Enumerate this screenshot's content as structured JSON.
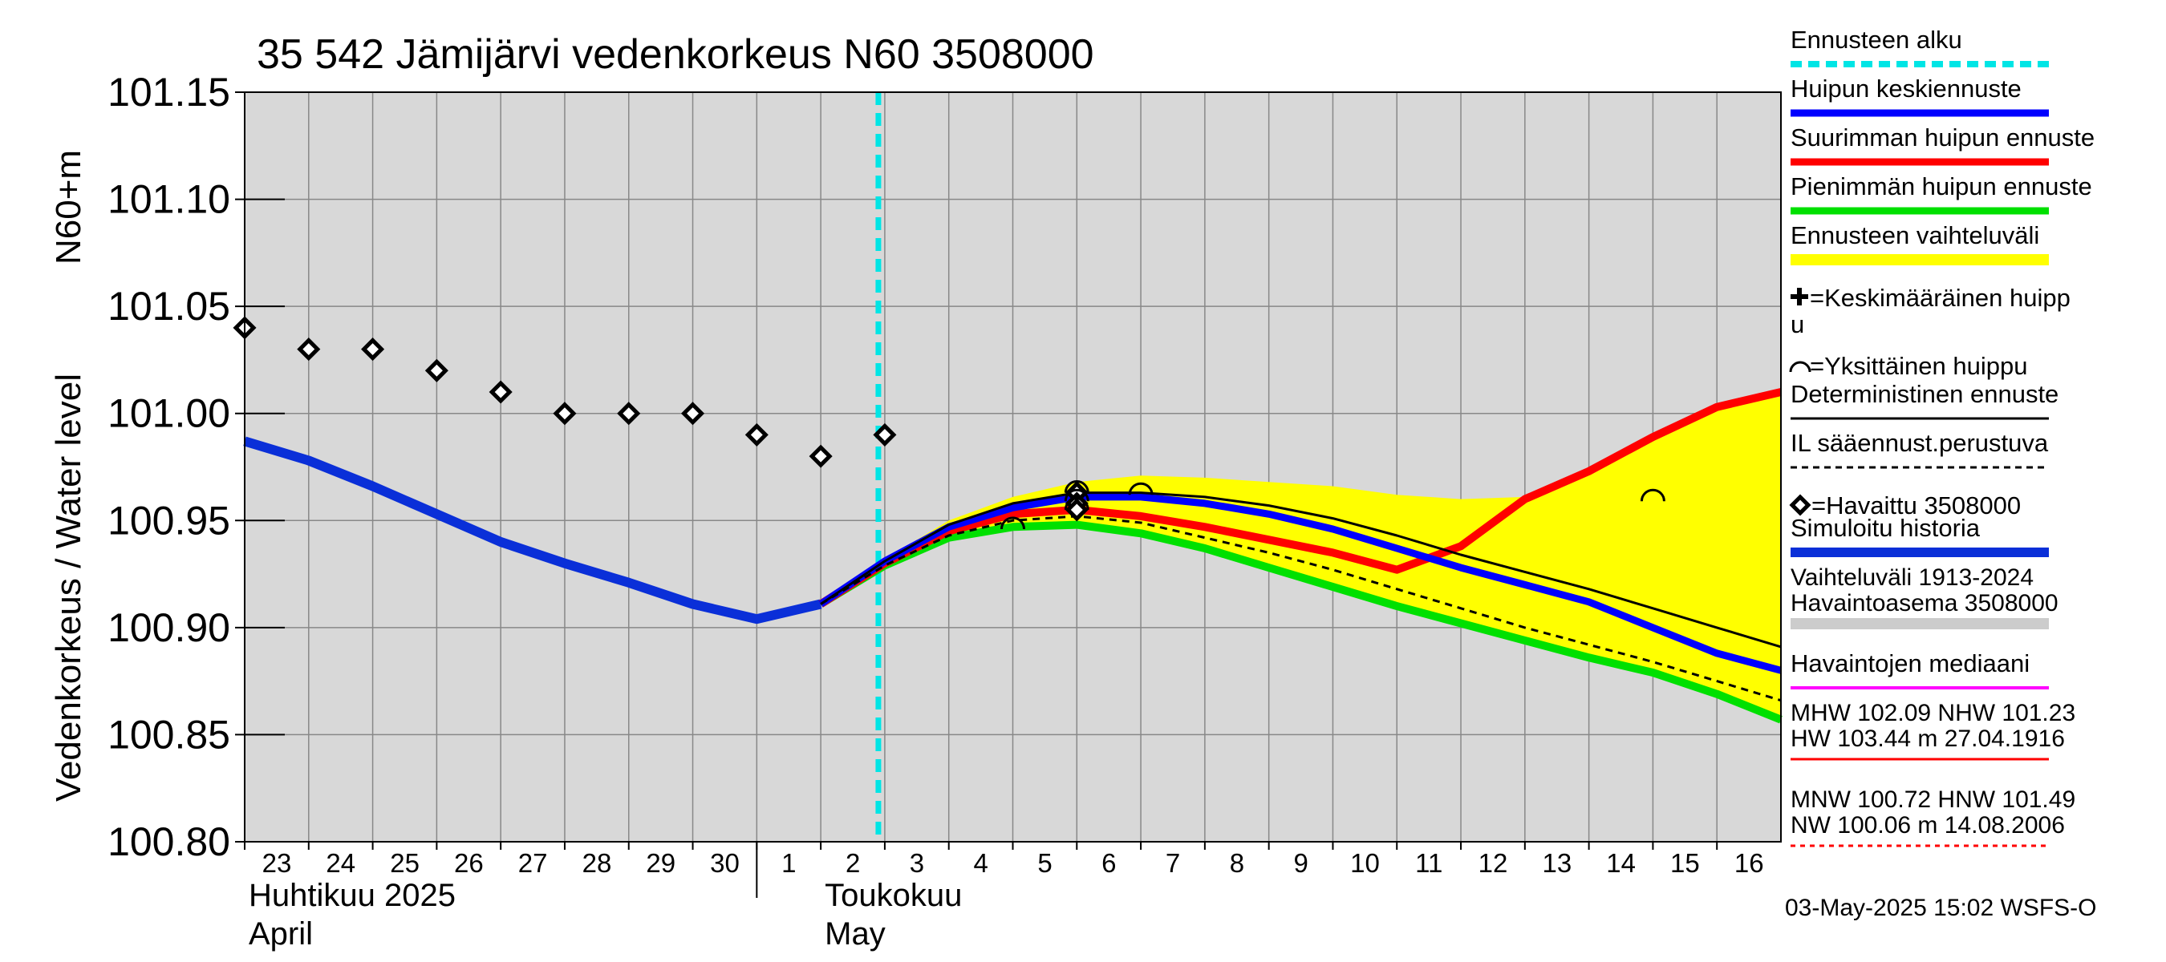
{
  "chart_data": {
    "type": "line",
    "title": "35 542 Jämijärvi vedenkorkeus N60 3508000",
    "ylabel": "Vedenkorkeus / Water level",
    "ylabel_unit": "N60+m",
    "ylim": [
      100.8,
      101.15
    ],
    "yticks": [
      "101.15",
      "101.10",
      "101.05",
      "101.00",
      "100.95",
      "100.90",
      "100.85",
      "100.80"
    ],
    "x_day_range": [
      0,
      24
    ],
    "x_tick_labels": [
      "23",
      "24",
      "25",
      "26",
      "27",
      "28",
      "29",
      "30",
      "1",
      "2",
      "3",
      "4",
      "5",
      "6",
      "7",
      "8",
      "9",
      "10",
      "11",
      "12",
      "13",
      "14",
      "15",
      "16"
    ],
    "month_labels": [
      {
        "fi": "Huhtikuu  2025",
        "en": "April"
      },
      {
        "fi": "Toukokuu",
        "en": "May"
      }
    ],
    "forecast_start_day": 10,
    "series": [
      {
        "name": "Havaittu 3508000",
        "kind": "observed",
        "x": [
          0,
          1,
          2,
          3,
          4,
          5,
          6,
          7,
          8,
          9,
          10
        ],
        "y": [
          101.04,
          101.03,
          101.03,
          101.02,
          101.01,
          101.0,
          101.0,
          101.0,
          100.99,
          100.98,
          100.99
        ]
      },
      {
        "name": "Simuloitu historia",
        "kind": "simulated",
        "x": [
          0,
          1,
          2,
          3,
          4,
          5,
          6,
          7,
          8,
          9
        ],
        "y": [
          100.987,
          100.978,
          100.966,
          100.953,
          100.94,
          100.93,
          100.921,
          100.911,
          100.904,
          100.911
        ]
      },
      {
        "name": "Ennusteen vaihteluväli",
        "kind": "band",
        "x": [
          9,
          10,
          11,
          12,
          13,
          14,
          15,
          16,
          17,
          18,
          19,
          20,
          21,
          22,
          23,
          24
        ],
        "upper": [
          100.911,
          100.932,
          100.95,
          100.961,
          100.968,
          100.971,
          100.97,
          100.968,
          100.966,
          100.962,
          100.96,
          100.961,
          100.972,
          100.99,
          101.003,
          101.01
        ],
        "lower": [
          100.911,
          100.93,
          100.943,
          100.947,
          100.948,
          100.944,
          100.937,
          100.928,
          100.919,
          100.91,
          100.902,
          100.893,
          100.885,
          100.878,
          100.869,
          100.857
        ]
      },
      {
        "name": "Suurimman huipun ennuste",
        "kind": "max",
        "x": [
          9,
          10,
          11,
          12,
          13,
          14,
          15,
          16,
          17,
          18,
          19,
          20,
          21,
          22,
          23,
          24
        ],
        "y": [
          100.911,
          100.93,
          100.945,
          100.953,
          100.955,
          100.952,
          100.947,
          100.941,
          100.935,
          100.927,
          100.938,
          100.96,
          100.973,
          100.989,
          101.003,
          101.01
        ]
      },
      {
        "name": "Pienimmän huipun ennuste",
        "kind": "min",
        "x": [
          9,
          10,
          11,
          12,
          13,
          14,
          15,
          16,
          17,
          18,
          19,
          20,
          21,
          22,
          23,
          24
        ],
        "y": [
          100.911,
          100.929,
          100.942,
          100.947,
          100.948,
          100.944,
          100.937,
          100.928,
          100.919,
          100.91,
          100.902,
          100.894,
          100.886,
          100.879,
          100.869,
          100.857
        ]
      },
      {
        "name": "Huipun keskiennuste",
        "kind": "mean",
        "x": [
          9,
          10,
          11,
          12,
          13,
          14,
          15,
          16,
          17,
          18,
          19,
          20,
          21,
          22,
          23,
          24
        ],
        "y": [
          100.911,
          100.931,
          100.947,
          100.956,
          100.961,
          100.961,
          100.958,
          100.953,
          100.946,
          100.937,
          100.928,
          100.92,
          100.912,
          100.9,
          100.888,
          100.88
        ]
      },
      {
        "name": "Deterministinen ennuste",
        "kind": "deterministic",
        "x": [
          9,
          10,
          11,
          12,
          13,
          14,
          15,
          16,
          17,
          18,
          19,
          20,
          21,
          22,
          23,
          24
        ],
        "y": [
          100.911,
          100.931,
          100.948,
          100.958,
          100.963,
          100.963,
          100.961,
          100.957,
          100.951,
          100.943,
          100.934,
          100.926,
          100.918,
          100.909,
          100.9,
          100.891
        ]
      },
      {
        "name": "IL sääennust.perustuva",
        "kind": "weather",
        "x": [
          9,
          10,
          11,
          12,
          13,
          14,
          15,
          16,
          17,
          18,
          19,
          20,
          21,
          22,
          23,
          24
        ],
        "y": [
          100.911,
          100.929,
          100.943,
          100.95,
          100.952,
          100.949,
          100.942,
          100.935,
          100.927,
          100.918,
          100.909,
          100.9,
          100.892,
          100.884,
          100.875,
          100.866
        ]
      }
    ],
    "individual_peaks": [
      {
        "x": 12.0,
        "y": 100.949
      },
      {
        "x": 13.0,
        "y": 100.966
      },
      {
        "x": 13.0,
        "y": 100.962
      },
      {
        "x": 13.0,
        "y": 100.958
      },
      {
        "x": 14.0,
        "y": 100.965
      },
      {
        "x": 22.0,
        "y": 100.962
      }
    ],
    "peak_markers_observed": [
      {
        "x": 13.0,
        "y": 100.963
      },
      {
        "x": 13.0,
        "y": 100.958
      },
      {
        "x": 13.0,
        "y": 100.955
      }
    ],
    "colors": {
      "forecast_start": "#00e5e5",
      "mean": "#0000ff",
      "max": "#ff0000",
      "min": "#00e000",
      "band": "#ffff00",
      "simulated": "#0a2fd8",
      "range_bar": "#cccccc",
      "median": "#ff00ff",
      "plot_bg": "#d8d8d8",
      "grid": "#888888"
    }
  },
  "legend": [
    {
      "label": "Ennusteen alku",
      "style": "cyan-dash"
    },
    {
      "label": "Huipun keskiennuste",
      "style": "blue"
    },
    {
      "label": "Suurimman huipun ennuste",
      "style": "red"
    },
    {
      "label": "Pienimmän huipun ennuste",
      "style": "green"
    },
    {
      "label": "Ennusteen vaihteluväli",
      "style": "yellow"
    },
    {
      "label": "=Keskimääräinen huipp",
      "label2": "u",
      "style": "plus"
    },
    {
      "label": "=Yksittäinen huippu",
      "style": "arc"
    },
    {
      "label": "Deterministinen ennuste",
      "style": "black"
    },
    {
      "label": "IL sääennust.perustuva",
      "style": "dash"
    },
    {
      "label": "=Havaittu 3508000",
      "style": "diamond"
    },
    {
      "label": "Simuloitu historia",
      "style": "simblue"
    },
    {
      "label": "Vaihteluväli 1913-2024",
      "label2": " Havaintoasema 3508000",
      "style": "gray"
    },
    {
      "label": "Havaintojen mediaani",
      "style": "magenta"
    },
    {
      "label": "MHW 102.09 NHW 101.23",
      "label2": "HW 103.44 m 27.04.1916",
      "style": "redthin"
    },
    {
      "label": "MNW 100.72 HNW 101.49",
      "label2": "NW 100.06 m 14.08.2006",
      "style": "reddot"
    }
  ],
  "timestamp": "03-May-2025 15:02 WSFS-O"
}
